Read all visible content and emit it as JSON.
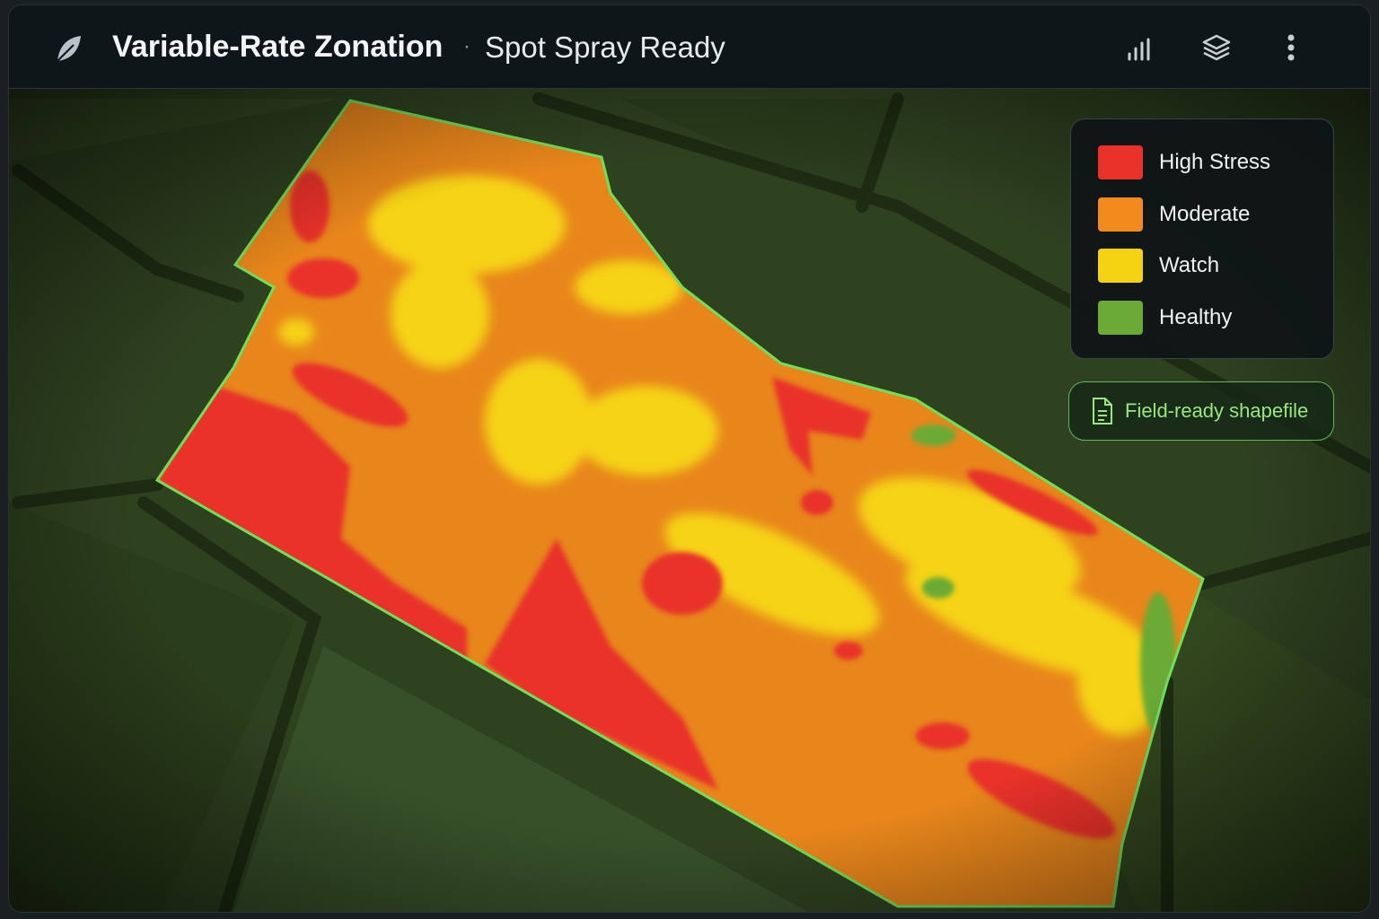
{
  "header": {
    "title": "Variable-Rate Zonation",
    "subtitle": "Spot Spray Ready"
  },
  "legend": {
    "items": [
      {
        "label": "High Stress",
        "color": "#e8322a"
      },
      {
        "label": "Moderate",
        "color": "#f28a1c"
      },
      {
        "label": "Watch",
        "color": "#f5d312"
      },
      {
        "label": "Healthy",
        "color": "#6aaa35"
      }
    ]
  },
  "button": {
    "label": "Field-ready shapefile"
  }
}
